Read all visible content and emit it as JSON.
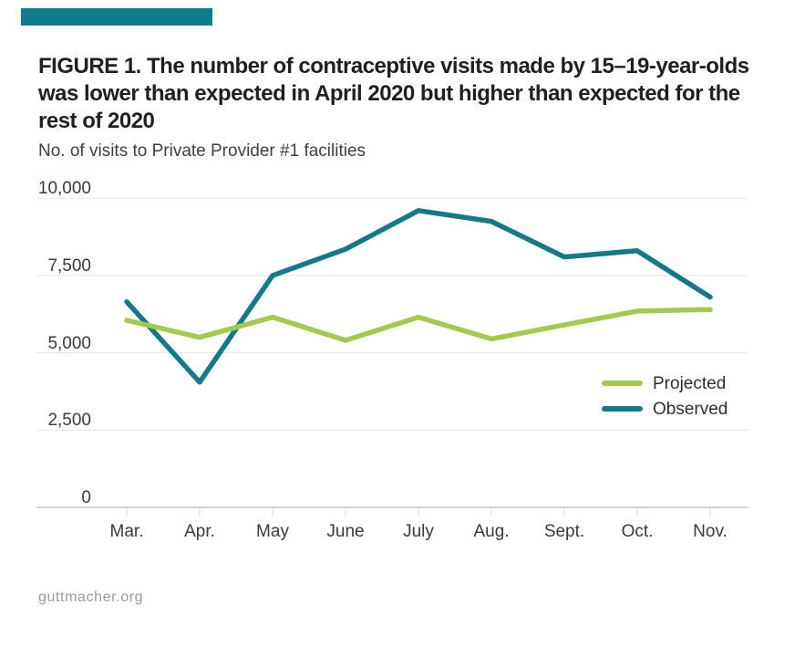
{
  "accent_color": "#0e7c8b",
  "figure": {
    "title": "FIGURE 1. The number of contraceptive visits made by 15–19-year-olds was lower than expected in April 2020 but higher than expected for the rest of 2020",
    "title_lines": [
      "FIGURE 1. The number of contraceptive visits made by 15–19-year-olds",
      "was lower than expected in April 2020 but higher than expected for the",
      "rest of 2020"
    ],
    "subtitle": "No. of visits to Private Provider #1 facilities",
    "footer": "guttmacher.org"
  },
  "chart_data": {
    "type": "line",
    "title": "FIGURE 1. The number of contraceptive visits made by 15–19-year-olds was lower than expected in April 2020 but higher than expected for the rest of 2020",
    "ylabel": "No. of visits to Private Provider #1 facilities",
    "categories": [
      "Mar.",
      "Apr.",
      "May",
      "June",
      "July",
      "Aug.",
      "Sept.",
      "Oct.",
      "Nov."
    ],
    "series": [
      {
        "name": "Projected",
        "color": "#a3c94f",
        "values": [
          6050,
          5500,
          6150,
          5400,
          6150,
          5450,
          5900,
          6350,
          6400
        ]
      },
      {
        "name": "Observed",
        "color": "#147a89",
        "values": [
          6650,
          4050,
          7500,
          8350,
          9600,
          9250,
          8100,
          8300,
          6800
        ]
      }
    ],
    "ylim": [
      0,
      10000
    ],
    "yticks": [
      0,
      2500,
      5000,
      7500,
      10000
    ],
    "ytick_labels": [
      "0",
      "2,500",
      "5,000",
      "7,500",
      "10,000"
    ],
    "grid": "horizontal",
    "legend_position": "inside-right"
  }
}
